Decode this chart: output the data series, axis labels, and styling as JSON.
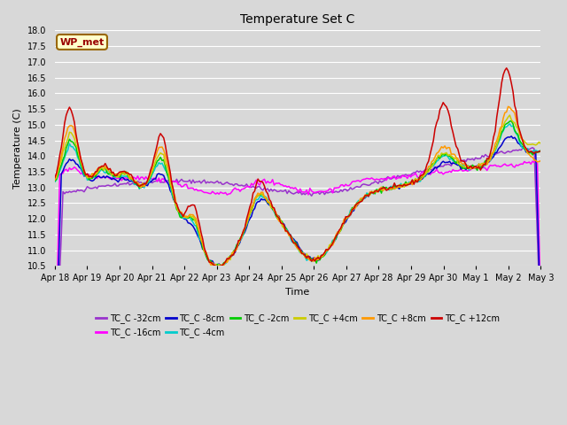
{
  "title": "Temperature Set C",
  "xlabel": "Time",
  "ylabel": "Temperature (C)",
  "ylim": [
    10.5,
    18.0
  ],
  "yticks": [
    10.5,
    11.0,
    11.5,
    12.0,
    12.5,
    13.0,
    13.5,
    14.0,
    14.5,
    15.0,
    15.5,
    16.0,
    16.5,
    17.0,
    17.5,
    18.0
  ],
  "xtick_labels": [
    "Apr 18",
    "Apr 19",
    "Apr 20",
    "Apr 21",
    "Apr 22",
    "Apr 23",
    "Apr 24",
    "Apr 25",
    "Apr 26",
    "Apr 27",
    "Apr 28",
    "Apr 29",
    "Apr 30",
    "May 1",
    "May 2",
    "May 3"
  ],
  "background_color": "#d8d8d8",
  "plot_bg_color": "#d8d8d8",
  "grid_color": "#ffffff",
  "legend_labels": [
    "TC_C -32cm",
    "TC_C -16cm",
    "TC_C -8cm",
    "TC_C -4cm",
    "TC_C -2cm",
    "TC_C +4cm",
    "TC_C +8cm",
    "TC_C +12cm"
  ],
  "line_colors": [
    "#9933cc",
    "#ff00ff",
    "#0000cc",
    "#00cccc",
    "#00cc00",
    "#cccc00",
    "#ff9900",
    "#cc0000"
  ],
  "wp_met_label": "WP_met",
  "wp_met_bg": "#ffffcc",
  "wp_met_border": "#996600",
  "wp_met_text_color": "#990000",
  "title_fontsize": 10,
  "axis_label_fontsize": 8,
  "tick_fontsize": 7,
  "legend_fontsize": 7
}
